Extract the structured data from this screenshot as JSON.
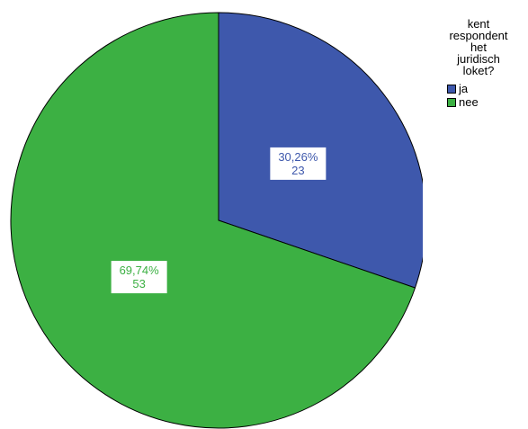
{
  "chart_data": {
    "type": "pie",
    "title": "",
    "legend": {
      "title": "kent\nrespondent\nhet\njuridisch\nloket?",
      "placement": "top-right"
    },
    "slices": [
      {
        "name": "ja",
        "value": 23,
        "percent_label": "30,26%",
        "count_label": "23",
        "color": "#3e58ac",
        "label_color": "#3e58ac"
      },
      {
        "name": "nee",
        "value": 53,
        "percent_label": "69,74%",
        "count_label": "53",
        "color": "#3cb043",
        "label_color": "#3cb043"
      }
    ]
  }
}
